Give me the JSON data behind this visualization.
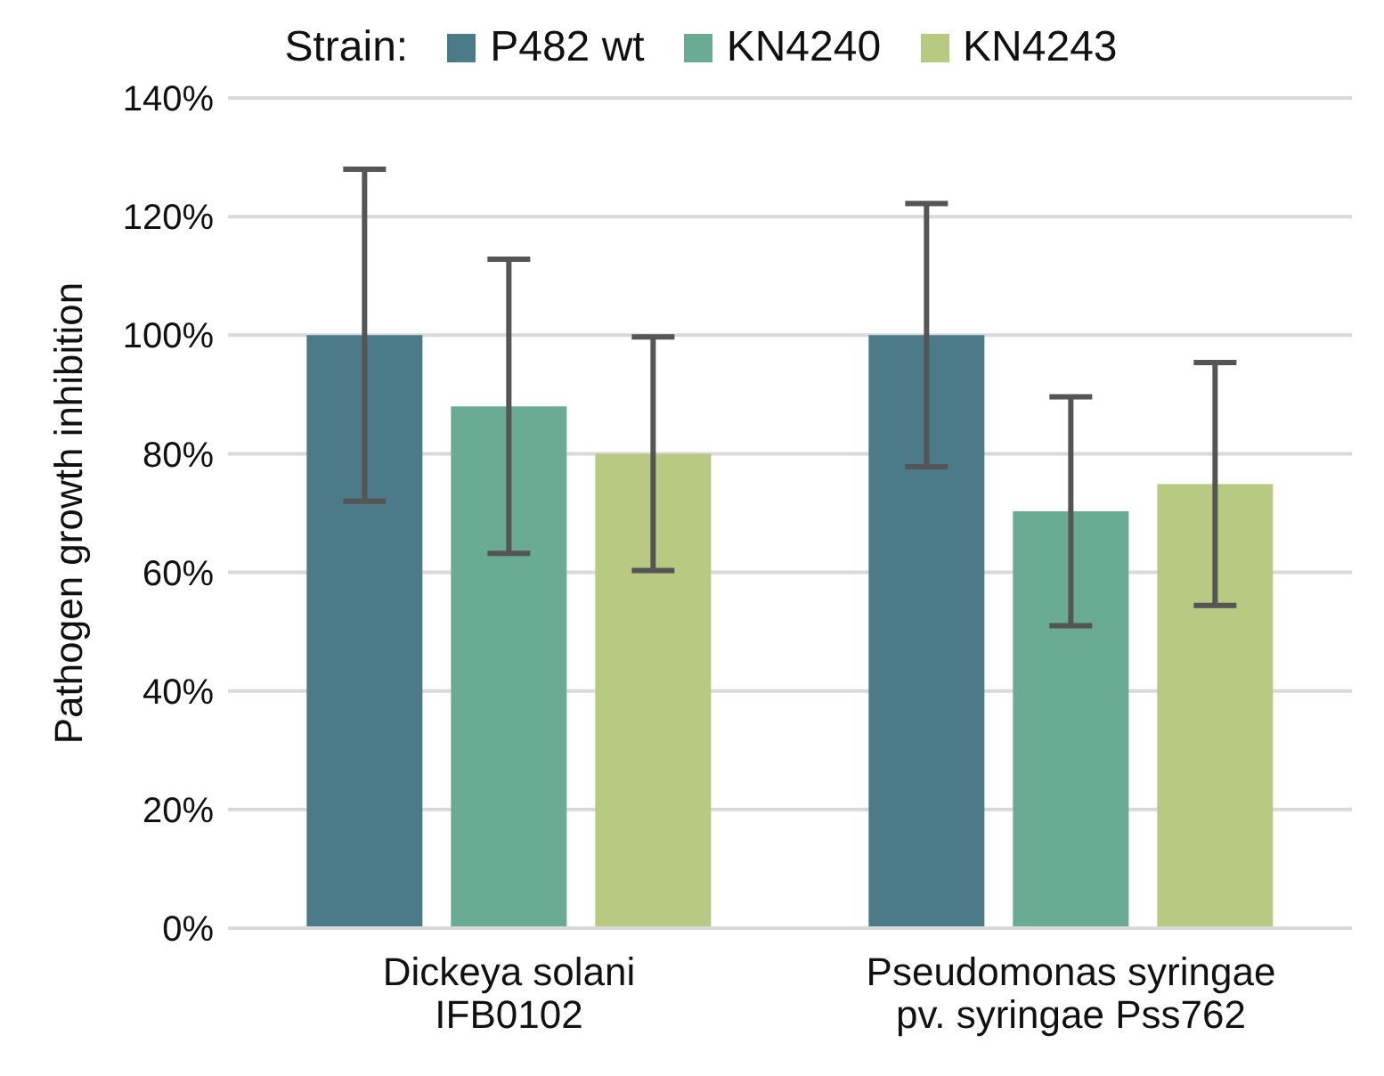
{
  "chart_data": {
    "type": "bar",
    "ylabel": "Pathogen growth inhibition",
    "legend_title": "Strain:",
    "legend": "top",
    "categories": [
      "Dickeya solani\nIFB0102",
      "Pseudomonas syringae\npv. syringae Pss762"
    ],
    "series": [
      {
        "name": "P482 wt",
        "color": "#4b7a88",
        "values": [
          100,
          100
        ],
        "errors": [
          28,
          22.2
        ]
      },
      {
        "name": "KN4240",
        "color": "#6aab93",
        "values": [
          88,
          70.3
        ],
        "errors": [
          24.8,
          19.3
        ]
      },
      {
        "name": "KN4243",
        "color": "#b8c981",
        "values": [
          80,
          74.9
        ],
        "errors": [
          19.7,
          20.5
        ]
      }
    ],
    "ylim": [
      0,
      140
    ],
    "yticks": [
      {
        "value": 0,
        "label": "0%"
      },
      {
        "value": 20,
        "label": "20%"
      },
      {
        "value": 40,
        "label": "40%"
      },
      {
        "value": 60,
        "label": "60%"
      },
      {
        "value": 80,
        "label": "80%"
      },
      {
        "value": 100,
        "label": "100%"
      },
      {
        "value": 120,
        "label": "120%"
      },
      {
        "value": 140,
        "label": "140%"
      }
    ],
    "grid": "y"
  }
}
